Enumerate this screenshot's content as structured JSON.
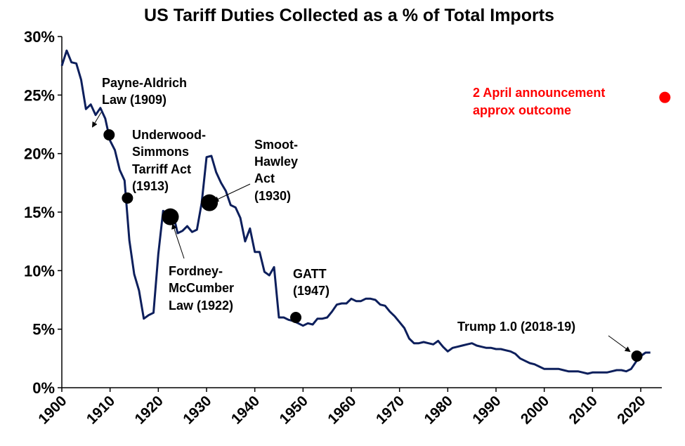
{
  "chart_data": {
    "type": "line",
    "title": "US Tariff Duties Collected as a % of Total Imports",
    "xlabel": "",
    "ylabel": "",
    "xlim": [
      1900,
      2024
    ],
    "ylim": [
      0,
      30
    ],
    "grid": false,
    "legend": "none",
    "x_ticks": [
      1900,
      1910,
      1920,
      1930,
      1940,
      1950,
      1960,
      1970,
      1980,
      1990,
      2000,
      2010,
      2020
    ],
    "x_tick_labels": [
      "1900",
      "1910",
      "1920",
      "1930",
      "1940",
      "1950",
      "1960",
      "1970",
      "1980",
      "1990",
      "2000",
      "2010",
      "2020"
    ],
    "y_ticks": [
      0,
      5,
      10,
      15,
      20,
      25,
      30
    ],
    "y_tick_labels": [
      "0%",
      "5%",
      "10%",
      "15%",
      "20%",
      "25%",
      "30%"
    ],
    "series": [
      {
        "name": "Tariff duties as % of imports",
        "color": "#0d1f5c",
        "x": [
          1900,
          1901,
          1902,
          1903,
          1904,
          1905,
          1906,
          1907,
          1908,
          1909,
          1910,
          1911,
          1912,
          1913,
          1914,
          1915,
          1916,
          1917,
          1918,
          1919,
          1920,
          1921,
          1922,
          1923,
          1924,
          1925,
          1926,
          1927,
          1928,
          1929,
          1930,
          1931,
          1932,
          1933,
          1934,
          1935,
          1936,
          1937,
          1938,
          1939,
          1940,
          1941,
          1942,
          1943,
          1944,
          1945,
          1946,
          1947,
          1948,
          1949,
          1950,
          1951,
          1952,
          1953,
          1954,
          1955,
          1956,
          1957,
          1958,
          1959,
          1960,
          1961,
          1962,
          1963,
          1964,
          1965,
          1966,
          1967,
          1968,
          1969,
          1970,
          1971,
          1972,
          1973,
          1974,
          1975,
          1976,
          1977,
          1978,
          1979,
          1980,
          1981,
          1982,
          1983,
          1984,
          1985,
          1986,
          1987,
          1988,
          1989,
          1990,
          1991,
          1992,
          1993,
          1994,
          1995,
          1996,
          1997,
          1998,
          1999,
          2000,
          2001,
          2002,
          2003,
          2004,
          2005,
          2006,
          2007,
          2008,
          2009,
          2010,
          2011,
          2012,
          2013,
          2014,
          2015,
          2016,
          2017,
          2018,
          2019,
          2020,
          2021,
          2022
        ],
        "values": [
          27.5,
          28.8,
          27.8,
          27.7,
          26.3,
          23.8,
          24.2,
          23.3,
          23.9,
          23.0,
          21.1,
          20.3,
          18.6,
          17.7,
          12.6,
          9.7,
          8.3,
          5.9,
          6.2,
          6.4,
          11.4,
          15.1,
          14.9,
          15.0,
          13.2,
          13.4,
          13.8,
          13.3,
          13.5,
          15.8,
          19.7,
          19.8,
          18.4,
          17.5,
          16.8,
          15.6,
          15.4,
          14.5,
          12.5,
          13.6,
          11.6,
          11.6,
          9.9,
          9.6,
          10.3,
          6.0,
          6.0,
          5.8,
          5.7,
          5.5,
          5.3,
          5.5,
          5.4,
          5.9,
          5.9,
          6.0,
          6.5,
          7.1,
          7.2,
          7.2,
          7.6,
          7.4,
          7.4,
          7.6,
          7.6,
          7.5,
          7.1,
          7.0,
          6.5,
          6.1,
          5.6,
          5.1,
          4.2,
          3.8,
          3.8,
          3.9,
          3.8,
          3.7,
          4.0,
          3.5,
          3.1,
          3.4,
          3.5,
          3.6,
          3.7,
          3.8,
          3.6,
          3.5,
          3.4,
          3.4,
          3.3,
          3.3,
          3.2,
          3.1,
          2.9,
          2.5,
          2.3,
          2.1,
          2.0,
          1.8,
          1.6,
          1.6,
          1.6,
          1.6,
          1.5,
          1.4,
          1.4,
          1.4,
          1.3,
          1.2,
          1.3,
          1.3,
          1.3,
          1.3,
          1.4,
          1.5,
          1.5,
          1.4,
          1.6,
          2.2,
          2.7,
          3.0,
          3.0
        ]
      }
    ],
    "markers": [
      {
        "label": "Payne-Aldrich Law (1909)",
        "x": 1909.8,
        "y": 21.6,
        "size": "medium"
      },
      {
        "label": "Underwood-Simmons Tarriff Act (1913)",
        "x": 1913.6,
        "y": 16.2,
        "size": "medium"
      },
      {
        "label": "Fordney-McCumber Law (1922)",
        "x": 1922.5,
        "y": 14.6,
        "size": "large"
      },
      {
        "label": "Smoot-Hawley Act (1930)",
        "x": 1930.6,
        "y": 15.8,
        "size": "large"
      },
      {
        "label": "GATT (1947)",
        "x": 1948.5,
        "y": 6.0,
        "size": "medium"
      },
      {
        "label": "Trump 1.0 (2018-19)",
        "x": 2019.2,
        "y": 2.7,
        "size": "medium"
      }
    ],
    "highlight_point": {
      "label": "2 April announcement approx outcome",
      "x": 2025,
      "y": 24.8,
      "color": "#ff0000"
    },
    "annotations": [
      {
        "lines": [
          "Payne-Aldrich",
          "Law (1909)"
        ],
        "color": "#000000"
      },
      {
        "lines": [
          "Underwood-",
          "Simmons",
          "Tarriff Act",
          "(1913)"
        ],
        "color": "#000000"
      },
      {
        "lines": [
          "Smoot-",
          "Hawley",
          "Act",
          "(1930)"
        ],
        "color": "#000000"
      },
      {
        "lines": [
          "Fordney-",
          "McCumber",
          "Law (1922)"
        ],
        "color": "#000000"
      },
      {
        "lines": [
          "GATT",
          "(1947)"
        ],
        "color": "#000000"
      },
      {
        "lines": [
          "Trump 1.0 (2018-19)"
        ],
        "color": "#000000"
      },
      {
        "lines": [
          "2 April announcement",
          "approx outcome"
        ],
        "color": "#ff0000"
      }
    ]
  }
}
